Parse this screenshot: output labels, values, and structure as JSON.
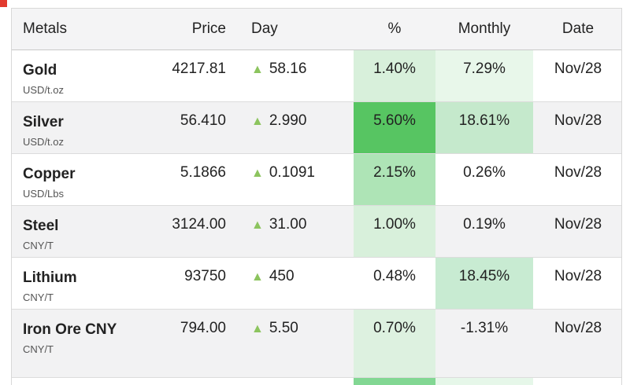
{
  "page": {
    "marker_color": "#e23a2e"
  },
  "table": {
    "up_arrow": "▲",
    "arrow_color": "#8cc45e",
    "headers": [
      "Metals",
      "Price",
      "Day",
      "%",
      "Monthly",
      "Date"
    ],
    "rows": [
      {
        "name": "Gold",
        "unit": "USD/t.oz",
        "price": "4217.81",
        "day": "58.16",
        "pct": "1.40%",
        "monthly": "7.29%",
        "date": "Nov/28",
        "pct_bg": "#d8f0db",
        "monthly_bg": "#e8f7ea"
      },
      {
        "name": "Silver",
        "unit": "USD/t.oz",
        "price": "56.410",
        "day": "2.990",
        "pct": "5.60%",
        "monthly": "18.61%",
        "date": "Nov/28",
        "pct_bg": "#57c562",
        "monthly_bg": "#c5e9cc"
      },
      {
        "name": "Copper",
        "unit": "USD/Lbs",
        "price": "5.1866",
        "day": "0.1091",
        "pct": "2.15%",
        "monthly": "0.26%",
        "date": "Nov/28",
        "pct_bg": "#aee4b6",
        "monthly_bg": ""
      },
      {
        "name": "Steel",
        "unit": "CNY/T",
        "price": "3124.00",
        "day": "31.00",
        "pct": "1.00%",
        "monthly": "0.19%",
        "date": "Nov/28",
        "pct_bg": "#d8f0db",
        "monthly_bg": ""
      },
      {
        "name": "Lithium",
        "unit": "CNY/T",
        "price": "93750",
        "day": "450",
        "pct": "0.48%",
        "monthly": "18.45%",
        "date": "Nov/28",
        "pct_bg": "",
        "monthly_bg": "#c8ebd2"
      },
      {
        "name": "Iron Ore CNY",
        "unit": "CNY/T",
        "price": "794.00",
        "day": "5.50",
        "pct": "0.70%",
        "monthly": "-1.31%",
        "date": "Nov/28",
        "pct_bg": "#ddf1e0",
        "monthly_bg": ""
      }
    ],
    "partial_row": {
      "pct_bg": "#82d793",
      "monthly_bg": "#e6f7e9"
    }
  }
}
